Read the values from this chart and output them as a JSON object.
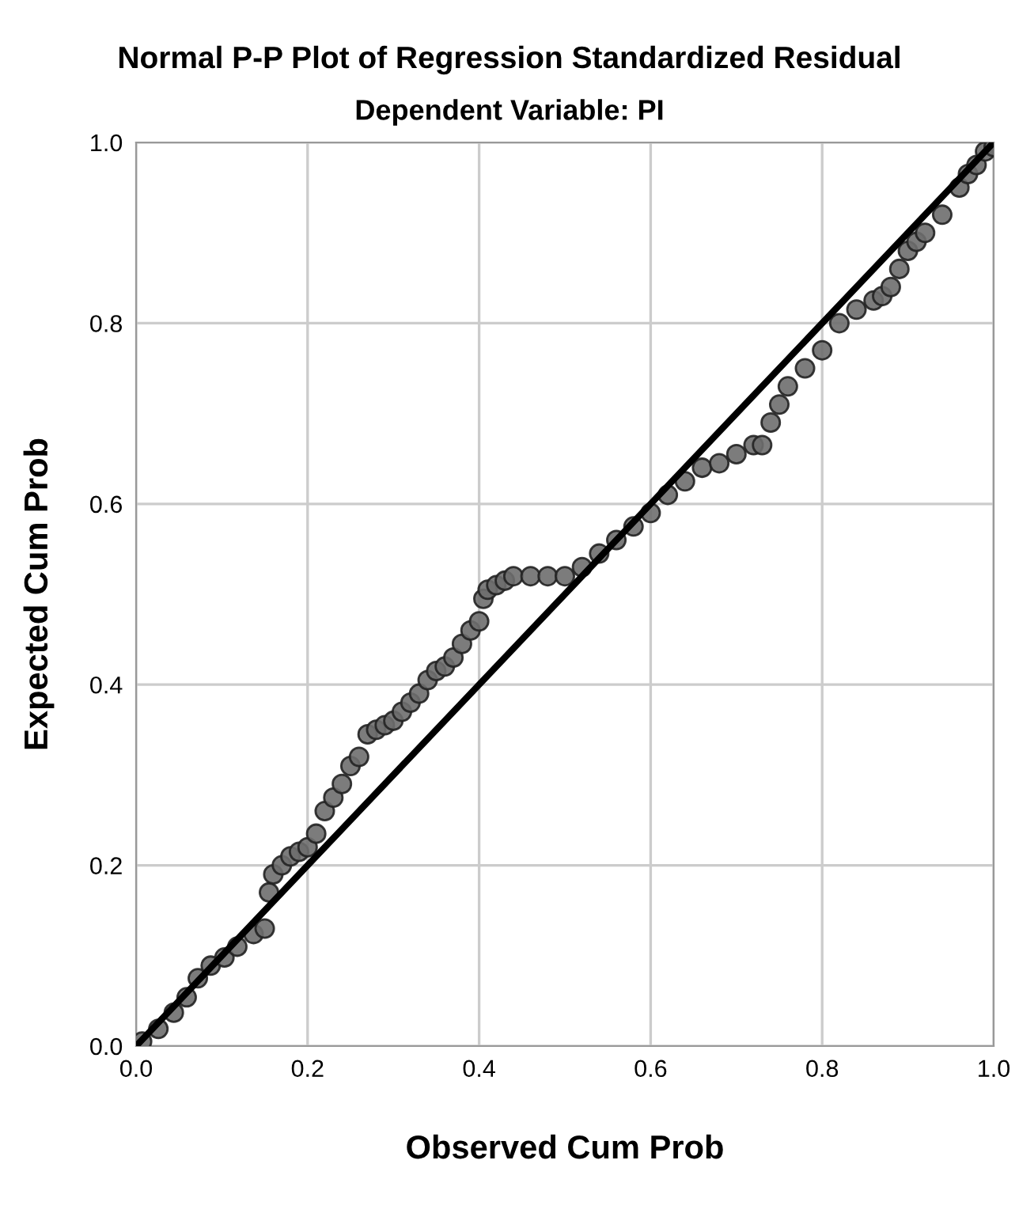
{
  "chart_data": {
    "type": "scatter",
    "title": "Normal P-P Plot of Regression Standardized Residual",
    "subtitle": "Dependent Variable: PI",
    "xlabel": "Observed Cum Prob",
    "ylabel": "Expected Cum Prob",
    "xlim": [
      0,
      1
    ],
    "ylim": [
      0,
      1
    ],
    "xticks": [
      {
        "value": 0,
        "label": "0.0"
      },
      {
        "value": 0.2,
        "label": "0.2"
      },
      {
        "value": 0.4,
        "label": "0.4"
      },
      {
        "value": 0.6,
        "label": "0.6"
      },
      {
        "value": 0.8,
        "label": "0.8"
      },
      {
        "value": 1,
        "label": "1.0"
      }
    ],
    "yticks": [
      {
        "value": 0,
        "label": "0.0"
      },
      {
        "value": 0.2,
        "label": "0.2"
      },
      {
        "value": 0.4,
        "label": "0.4"
      },
      {
        "value": 0.6,
        "label": "0.6"
      },
      {
        "value": 0.8,
        "label": "0.8"
      },
      {
        "value": 1,
        "label": "1.0"
      }
    ],
    "grid": true,
    "marker": "circle",
    "legend": false,
    "series": [
      {
        "color": "#6e6e6e",
        "x": [
          0.007,
          0.026,
          0.044,
          0.059,
          0.072,
          0.087,
          0.103,
          0.118,
          0.137,
          0.15,
          0.155,
          0.16,
          0.17,
          0.18,
          0.19,
          0.2,
          0.21,
          0.22,
          0.23,
          0.24,
          0.25,
          0.26,
          0.27,
          0.28,
          0.29,
          0.3,
          0.31,
          0.32,
          0.33,
          0.34,
          0.35,
          0.36,
          0.37,
          0.38,
          0.39,
          0.4,
          0.405,
          0.41,
          0.42,
          0.43,
          0.44,
          0.46,
          0.48,
          0.5,
          0.52,
          0.54,
          0.56,
          0.58,
          0.6,
          0.62,
          0.64,
          0.66,
          0.68,
          0.7,
          0.72,
          0.73,
          0.74,
          0.75,
          0.76,
          0.78,
          0.8,
          0.82,
          0.84,
          0.86,
          0.87,
          0.88,
          0.89,
          0.9,
          0.91,
          0.92,
          0.94,
          0.96,
          0.97,
          0.98,
          0.99,
          1.0
        ],
        "values": [
          0.005,
          0.019,
          0.037,
          0.054,
          0.075,
          0.089,
          0.098,
          0.11,
          0.124,
          0.13,
          0.17,
          0.19,
          0.2,
          0.21,
          0.215,
          0.22,
          0.235,
          0.26,
          0.275,
          0.29,
          0.31,
          0.32,
          0.345,
          0.35,
          0.355,
          0.36,
          0.37,
          0.38,
          0.39,
          0.405,
          0.415,
          0.42,
          0.43,
          0.445,
          0.46,
          0.47,
          0.495,
          0.505,
          0.51,
          0.515,
          0.52,
          0.52,
          0.52,
          0.52,
          0.53,
          0.545,
          0.56,
          0.575,
          0.59,
          0.61,
          0.625,
          0.64,
          0.645,
          0.655,
          0.665,
          0.665,
          0.69,
          0.71,
          0.73,
          0.75,
          0.77,
          0.8,
          0.815,
          0.825,
          0.83,
          0.84,
          0.86,
          0.88,
          0.89,
          0.9,
          0.92,
          0.95,
          0.965,
          0.975,
          0.99,
          0.995
        ]
      },
      {
        "type": "line",
        "color": "#000000",
        "x": [
          0,
          1
        ],
        "values": [
          0,
          1
        ],
        "marker": "none",
        "line_style": "solid"
      }
    ]
  }
}
